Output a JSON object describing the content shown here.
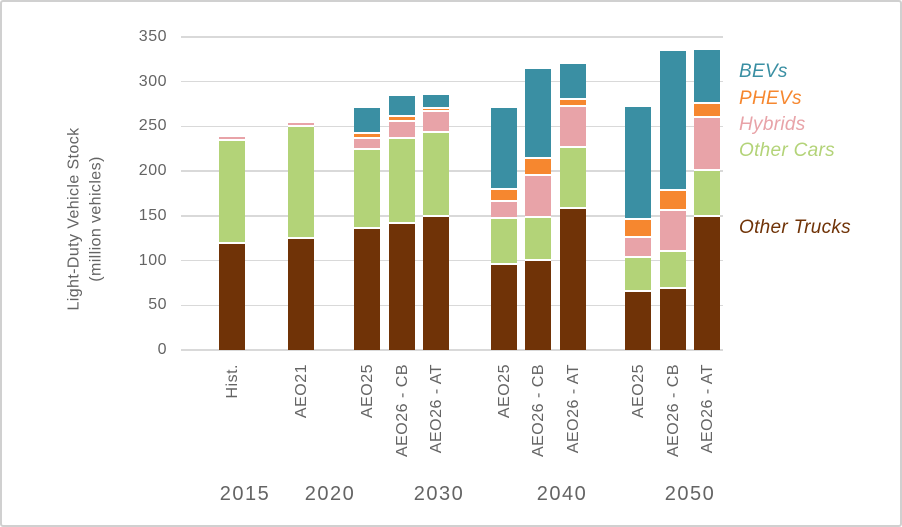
{
  "chart_data": {
    "type": "bar",
    "stacked": true,
    "title": "",
    "ylabel_line1": "Light-Duty Vehicle Stock",
    "ylabel_line2": "(million vehicles)",
    "ylim": [
      0,
      350
    ],
    "yticks": [
      0,
      50,
      100,
      150,
      200,
      250,
      300,
      350
    ],
    "grid": "horizontal",
    "legend_position": "right",
    "series": [
      {
        "key": "bevs",
        "label": "BEVs",
        "color": "#3A8FA3"
      },
      {
        "key": "phevs",
        "label": "PHEVs",
        "color": "#F6872F"
      },
      {
        "key": "hybrids",
        "label": "Hybrids",
        "color": "#E8A3A8"
      },
      {
        "key": "other_cars",
        "label": "Other Cars",
        "color": "#B3D378"
      },
      {
        "key": "other_trucks",
        "label": "Other Trucks",
        "color": "#703307"
      }
    ],
    "stack_order_bottom_to_top": [
      "other_trucks",
      "other_cars",
      "hybrids",
      "phevs",
      "bevs"
    ],
    "groups": [
      {
        "year": "2015",
        "bars": [
          {
            "label": "Hist.",
            "values": {
              "other_trucks": 118,
              "other_cars": 116,
              "hybrids": 4,
              "phevs": 0,
              "bevs": 0
            }
          }
        ]
      },
      {
        "year": "2020",
        "bars": [
          {
            "label": "AEO21",
            "values": {
              "other_trucks": 124,
              "other_cars": 125,
              "hybrids": 5,
              "phevs": 0,
              "bevs": 0
            }
          }
        ]
      },
      {
        "year": "2030",
        "bars": [
          {
            "label": "AEO25",
            "values": {
              "other_trucks": 135,
              "other_cars": 89,
              "hybrids": 12,
              "phevs": 6,
              "bevs": 29
            }
          },
          {
            "label": "AEO26 - CB",
            "values": {
              "other_trucks": 141,
              "other_cars": 95,
              "hybrids": 19,
              "phevs": 6,
              "bevs": 23
            }
          },
          {
            "label": "AEO26 - AT",
            "values": {
              "other_trucks": 149,
              "other_cars": 94,
              "hybrids": 23,
              "phevs": 4,
              "bevs": 15
            }
          }
        ]
      },
      {
        "year": "2040",
        "bars": [
          {
            "label": "AEO25",
            "values": {
              "other_trucks": 95,
              "other_cars": 52,
              "hybrids": 18,
              "phevs": 14,
              "bevs": 92
            }
          },
          {
            "label": "AEO26 - CB",
            "values": {
              "other_trucks": 100,
              "other_cars": 48,
              "hybrids": 47,
              "phevs": 19,
              "bevs": 100
            }
          },
          {
            "label": "AEO26 - AT",
            "values": {
              "other_trucks": 158,
              "other_cars": 68,
              "hybrids": 46,
              "phevs": 8,
              "bevs": 40
            }
          }
        ]
      },
      {
        "year": "2050",
        "bars": [
          {
            "label": "AEO25",
            "values": {
              "other_trucks": 65,
              "other_cars": 38,
              "hybrids": 22,
              "phevs": 20,
              "bevs": 127
            }
          },
          {
            "label": "AEO26 - CB",
            "values": {
              "other_trucks": 68,
              "other_cars": 42,
              "hybrids": 46,
              "phevs": 22,
              "bevs": 156
            }
          },
          {
            "label": "AEO26 - AT",
            "values": {
              "other_trucks": 149,
              "other_cars": 51,
              "hybrids": 60,
              "phevs": 15,
              "bevs": 61
            }
          }
        ]
      }
    ]
  }
}
